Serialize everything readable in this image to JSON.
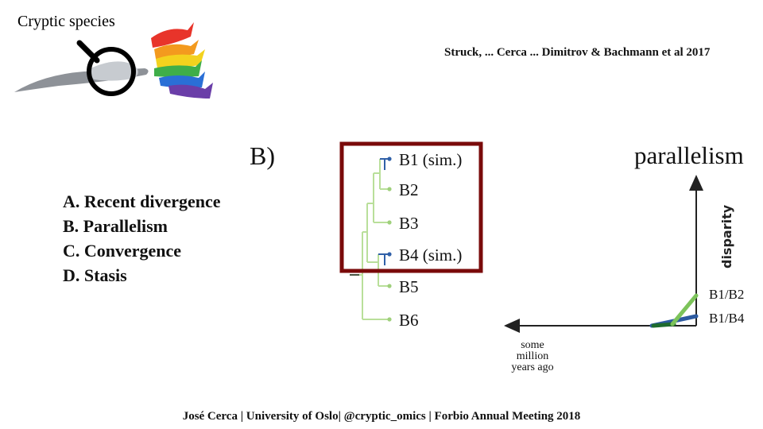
{
  "header": {
    "title": "Cryptic species",
    "citation": "Struck, ... Cerca ... Dimitrov & Bachmann et al 2017"
  },
  "figure": {
    "panel_label": "B)",
    "tips": [
      "B1 (sim.)",
      "B2",
      "B3",
      "B4 (sim.)",
      "B5",
      "B6"
    ],
    "y_axis_title": "parallelism",
    "y_axis_label": "disparity",
    "x_axis_label_lines": [
      "some",
      "million",
      "years ago"
    ],
    "pair_labels": [
      "B1/B2",
      "B1/B4"
    ],
    "colors": {
      "highlight_box": "#7a0a0a",
      "tree_light": "#b9df9a",
      "tree_blue": "#3060a8",
      "line_green_light": "#7cc35a",
      "line_green_dark": "#1e6b2e",
      "line_blue": "#2c5aa0"
    }
  },
  "options": [
    "A. Recent divergence",
    "B. Parallelism",
    "C. Convergence",
    "D. Stasis"
  ],
  "footer": {
    "text": "José Cerca | University of Oslo| @cryptic_omics | Forbio Annual Meeting 2018"
  },
  "logo": {
    "icon": "magnifier-rainbow-species-icon"
  }
}
